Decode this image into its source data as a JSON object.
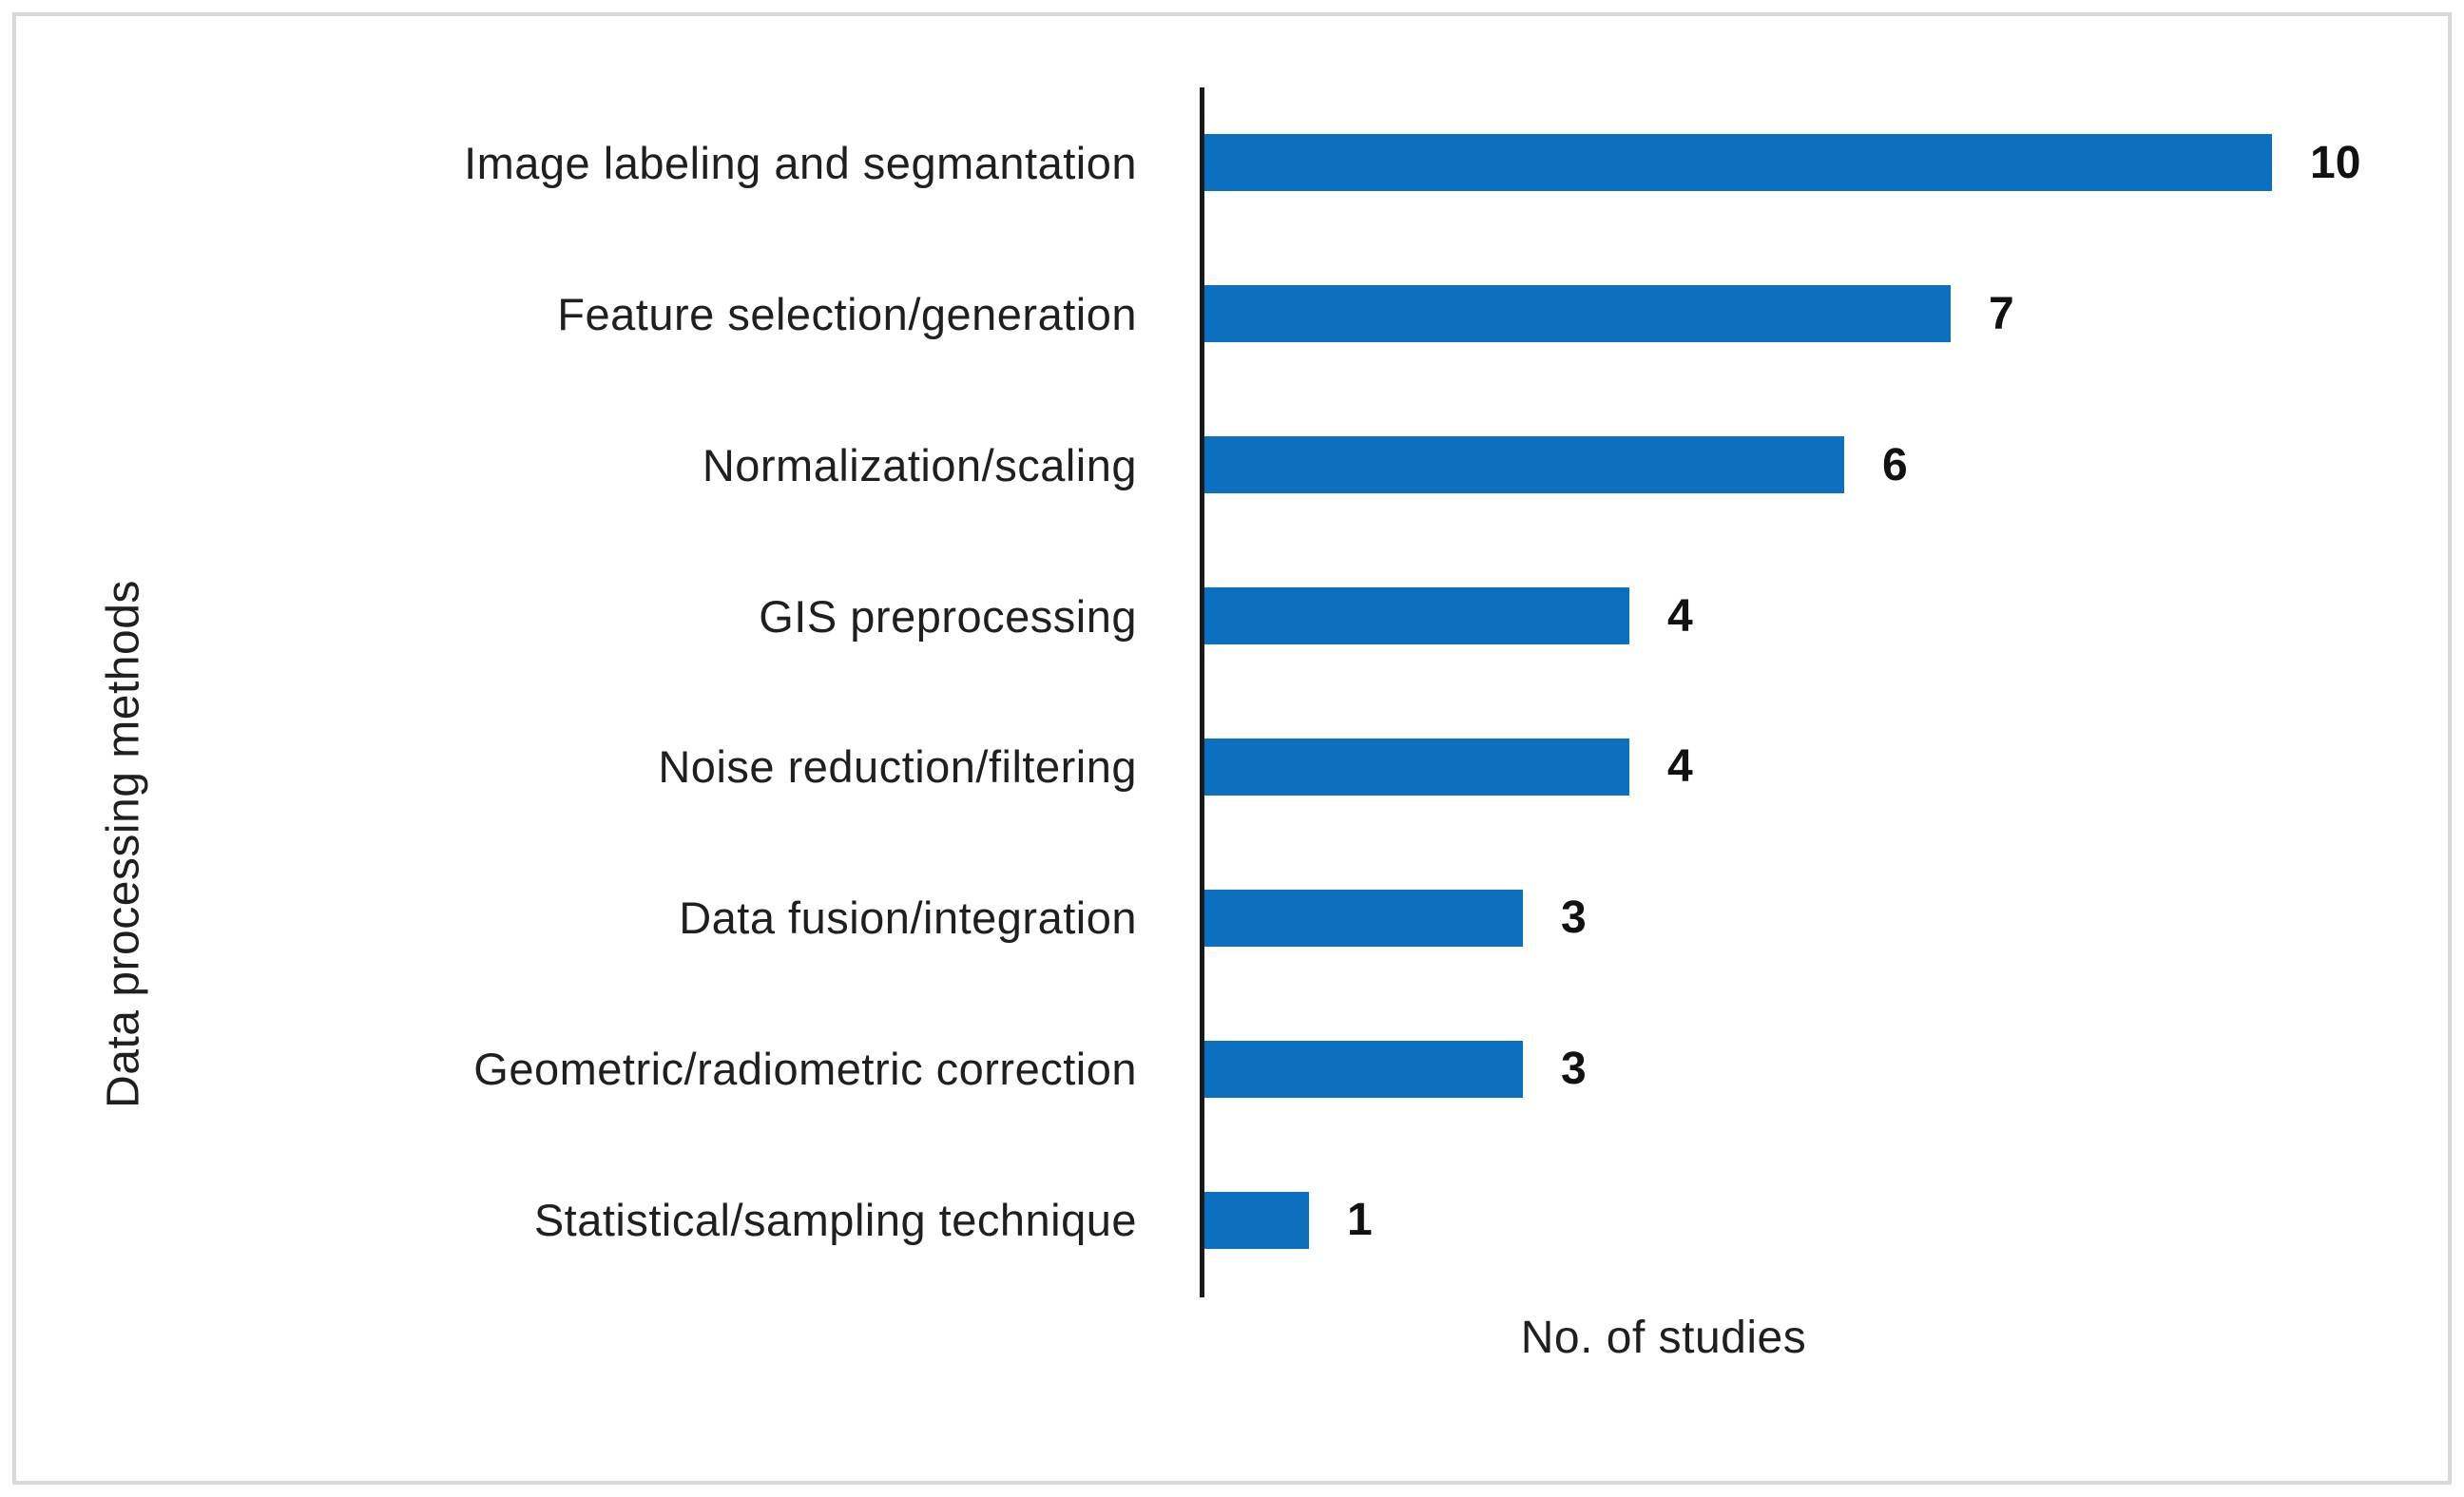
{
  "chart_data": {
    "type": "bar",
    "orientation": "horizontal",
    "title": "",
    "categories": [
      "Image labeling and segmantation",
      "Feature selection/generation",
      "Normalization/scaling",
      "GIS preprocessing",
      "Noise reduction/filtering",
      "Data fusion/integration",
      "Geometric/radiometric correction",
      "Statistical/sampling technique"
    ],
    "values": [
      10,
      7,
      6,
      4,
      4,
      3,
      3,
      1
    ],
    "xlabel": "No. of studies",
    "ylabel": "Data processing methods",
    "xlim": [
      0,
      10
    ],
    "grid": false,
    "legend": false,
    "value_labels_shown": true,
    "bar_color": "#0b70c0",
    "axis_line_color": "#1a1a1a",
    "frame_border_color": "#d9d9d9",
    "text_color": "#1f1f1f"
  }
}
